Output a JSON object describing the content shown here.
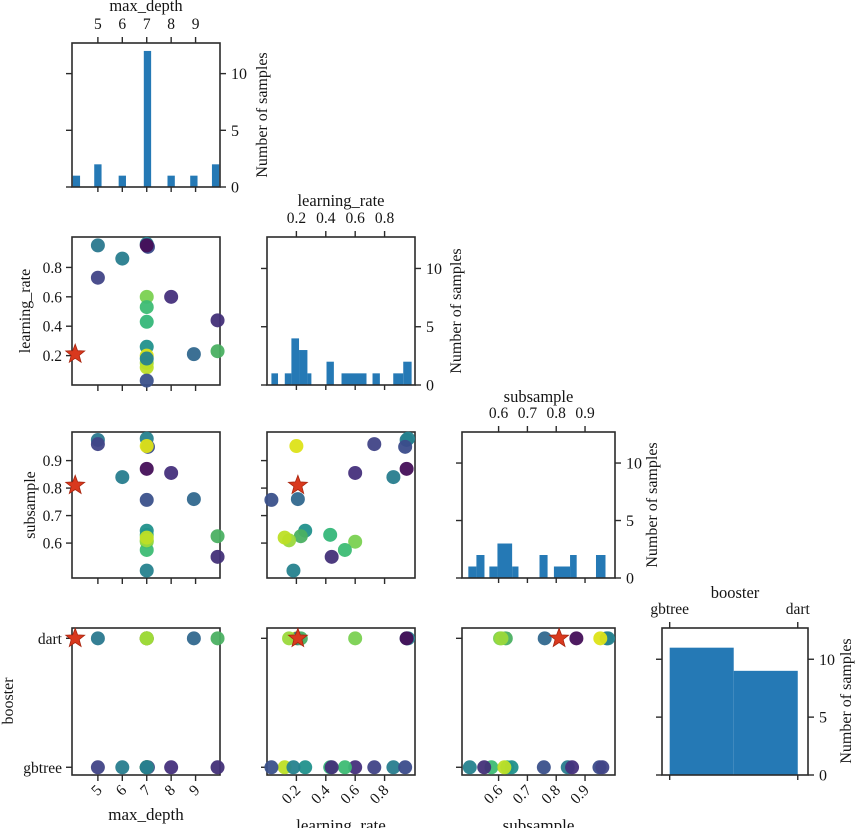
{
  "figure": {
    "kind": "hyperparameter pair plot",
    "background": "#ffffff",
    "frame_color": "#2b2b2b",
    "bar_color": "#2579b5",
    "best_marker_color": "#d9391e",
    "count_axis_label": "Number of samples"
  },
  "chart_data": {
    "type": "scatter",
    "subtype": "pairplot-matrix",
    "count_axis": {
      "label": "Number of samples",
      "ticks": [
        0,
        5,
        10
      ],
      "max": 12.7
    },
    "params": [
      {
        "name": "max_depth",
        "label": "max_depth",
        "range": [
          3.94,
          10.0
        ],
        "ticks": [
          5,
          6,
          7,
          8,
          9
        ]
      },
      {
        "name": "learning_rate",
        "label": "learning_rate",
        "range": [
          0.0,
          1.007
        ],
        "ticks": [
          0.2,
          0.4,
          0.6,
          0.8
        ]
      },
      {
        "name": "subsample",
        "label": "subsample",
        "range": [
          0.473,
          1.004
        ],
        "ticks": [
          0.6,
          0.7,
          0.8,
          0.9
        ]
      },
      {
        "name": "booster",
        "label": "booster",
        "range": [
          -0.06,
          1.08
        ],
        "ticks": [
          0,
          1
        ],
        "tick_labels": [
          "gbtree",
          "dart"
        ]
      }
    ],
    "histograms": {
      "max_depth": [
        {
          "from": 3.97,
          "to": 4.27,
          "count": 1
        },
        {
          "from": 4.85,
          "to": 5.15,
          "count": 2
        },
        {
          "from": 5.85,
          "to": 6.15,
          "count": 1
        },
        {
          "from": 6.88,
          "to": 7.18,
          "count": 12
        },
        {
          "from": 7.85,
          "to": 8.15,
          "count": 1
        },
        {
          "from": 8.78,
          "to": 9.08,
          "count": 1
        },
        {
          "from": 9.67,
          "to": 9.97,
          "count": 2
        }
      ],
      "learning_rate": [
        {
          "from": 0.03,
          "to": 0.075,
          "count": 1
        },
        {
          "from": 0.121,
          "to": 0.166,
          "count": 1
        },
        {
          "from": 0.166,
          "to": 0.218,
          "count": 4
        },
        {
          "from": 0.218,
          "to": 0.275,
          "count": 3
        },
        {
          "from": 0.275,
          "to": 0.302,
          "count": 1
        },
        {
          "from": 0.405,
          "to": 0.455,
          "count": 2
        },
        {
          "from": 0.507,
          "to": 0.677,
          "count": 1
        },
        {
          "from": 0.718,
          "to": 0.768,
          "count": 1
        },
        {
          "from": 0.859,
          "to": 0.927,
          "count": 1
        },
        {
          "from": 0.927,
          "to": 0.984,
          "count": 2
        }
      ],
      "subsample": [
        {
          "from": 0.495,
          "to": 0.523,
          "count": 1
        },
        {
          "from": 0.523,
          "to": 0.551,
          "count": 2
        },
        {
          "from": 0.568,
          "to": 0.596,
          "count": 1
        },
        {
          "from": 0.596,
          "to": 0.647,
          "count": 3
        },
        {
          "from": 0.647,
          "to": 0.669,
          "count": 1
        },
        {
          "from": 0.742,
          "to": 0.77,
          "count": 2
        },
        {
          "from": 0.792,
          "to": 0.848,
          "count": 1
        },
        {
          "from": 0.848,
          "to": 0.871,
          "count": 2
        },
        {
          "from": 0.938,
          "to": 0.971,
          "count": 2
        }
      ],
      "booster": [
        {
          "from": 0.0,
          "to": 0.5,
          "count": 11
        },
        {
          "from": 0.5,
          "to": 1.0,
          "count": 9
        }
      ]
    },
    "trials": [
      {
        "max_depth": 5.0,
        "learning_rate": 0.95,
        "subsample": 0.975,
        "booster": "dart",
        "color": "#2a788e"
      },
      {
        "max_depth": 6.0,
        "learning_rate": 0.86,
        "subsample": 0.84,
        "booster": "gbtree",
        "color": "#287d8e"
      },
      {
        "max_depth": 7.0,
        "learning_rate": 0.96,
        "subsample": 0.98,
        "booster": "dart",
        "color": "#26828e"
      },
      {
        "max_depth": 7.05,
        "learning_rate": 0.94,
        "subsample": 0.95,
        "booster": "gbtree",
        "color": "#3b4c8b"
      },
      {
        "max_depth": 7.0,
        "learning_rate": 0.95,
        "subsample": 0.87,
        "booster": "dart",
        "color": "#440f59"
      },
      {
        "max_depth": 5.0,
        "learning_rate": 0.73,
        "subsample": 0.96,
        "booster": "gbtree",
        "color": "#414487"
      },
      {
        "max_depth": 7.0,
        "learning_rate": 0.6,
        "subsample": 0.605,
        "booster": "dart",
        "color": "#7ad151"
      },
      {
        "max_depth": 8.0,
        "learning_rate": 0.6,
        "subsample": 0.855,
        "booster": "gbtree",
        "color": "#46307c"
      },
      {
        "max_depth": 7.0,
        "learning_rate": 0.53,
        "subsample": 0.575,
        "booster": "gbtree",
        "color": "#3dbc74"
      },
      {
        "max_depth": 7.0,
        "learning_rate": 0.43,
        "subsample": 0.63,
        "booster": "gbtree",
        "color": "#35b779"
      },
      {
        "max_depth": 9.9,
        "learning_rate": 0.44,
        "subsample": 0.55,
        "booster": "gbtree",
        "color": "#433078"
      },
      {
        "max_depth": 7.0,
        "learning_rate": 0.26,
        "subsample": 0.645,
        "booster": "gbtree",
        "color": "#21918c"
      },
      {
        "max_depth": 7.0,
        "learning_rate": 0.2,
        "subsample": 0.953,
        "booster": "dart",
        "color": "#dde318"
      },
      {
        "max_depth": 8.93,
        "learning_rate": 0.21,
        "subsample": 0.76,
        "booster": "dart",
        "color": "#31688e"
      },
      {
        "max_depth": 9.9,
        "learning_rate": 0.23,
        "subsample": 0.625,
        "booster": "dart",
        "color": "#4bb062"
      },
      {
        "max_depth": 7.0,
        "learning_rate": 0.15,
        "subsample": 0.61,
        "booster": "dart",
        "color": "#9bd93c"
      },
      {
        "max_depth": 7.0,
        "learning_rate": 0.12,
        "subsample": 0.62,
        "booster": "gbtree",
        "color": "#bddf26"
      },
      {
        "max_depth": 7.0,
        "learning_rate": 0.03,
        "subsample": 0.757,
        "booster": "gbtree",
        "color": "#3b518b"
      },
      {
        "max_depth": 7.0,
        "learning_rate": 0.18,
        "subsample": 0.5,
        "booster": "gbtree",
        "color": "#26828e"
      }
    ],
    "best_trial": {
      "max_depth": 4.07,
      "learning_rate": 0.21,
      "subsample": 0.81,
      "booster": "dart"
    }
  }
}
